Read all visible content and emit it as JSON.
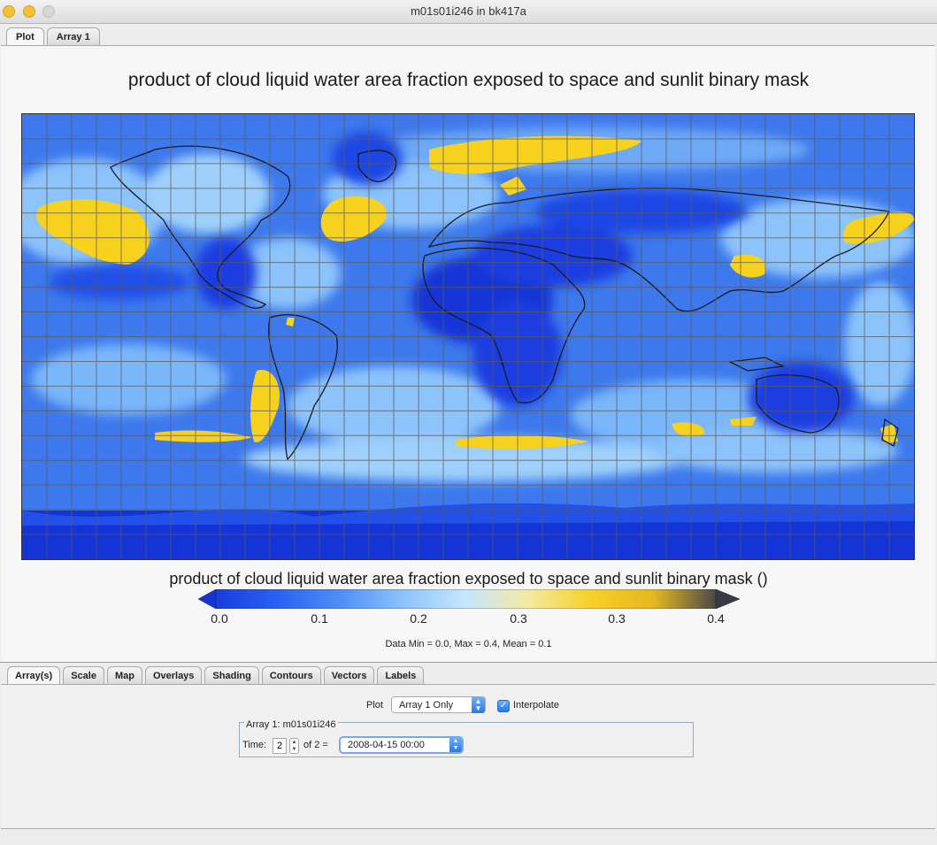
{
  "window": {
    "title": "m01s01i246 in bk417a"
  },
  "top_tabs": [
    {
      "label": "Plot",
      "active": true
    },
    {
      "label": "Array 1",
      "active": false
    }
  ],
  "plot": {
    "title": "product of cloud liquid water area fraction exposed to space and sunlit binary mask",
    "colorbar": {
      "title": "product of cloud liquid water area fraction exposed to space and sunlit binary mask ()",
      "ticks": [
        "0.0",
        "0.1",
        "0.2",
        "0.3",
        "0.3",
        "0.4"
      ],
      "colors": [
        "#1a3de0",
        "#2a62f0",
        "#4f8ff5",
        "#8cc3fb",
        "#c6e6fd",
        "#f4e9a0",
        "#f7cf28",
        "#e4b820",
        "#4a4a4a"
      ]
    },
    "stats": "Data Min = 0.0, Max = 0.4, Mean = 0.1"
  },
  "map_colors": {
    "ocean_base": "#3d79ec",
    "deep": "#1534d6",
    "light": "#9fd0fb",
    "yellow": "#f6d21e",
    "grid": "#5a5a5a",
    "coast": "#1b1b1b"
  },
  "bottom_tabs": [
    {
      "label": "Array(s)",
      "active": true
    },
    {
      "label": "Scale",
      "active": false
    },
    {
      "label": "Map",
      "active": false
    },
    {
      "label": "Overlays",
      "active": false
    },
    {
      "label": "Shading",
      "active": false
    },
    {
      "label": "Contours",
      "active": false
    },
    {
      "label": "Vectors",
      "active": false
    },
    {
      "label": "Labels",
      "active": false
    }
  ],
  "controls": {
    "plot_label": "Plot",
    "plot_select": "Array 1 Only",
    "interpolate_label": "Interpolate",
    "interpolate_checked": true,
    "group_legend": "Array 1: m01s01i246",
    "time_label": "Time:",
    "time_value": "2",
    "of_label": "of 2 =",
    "date_value": "2008-04-15 00:00"
  }
}
